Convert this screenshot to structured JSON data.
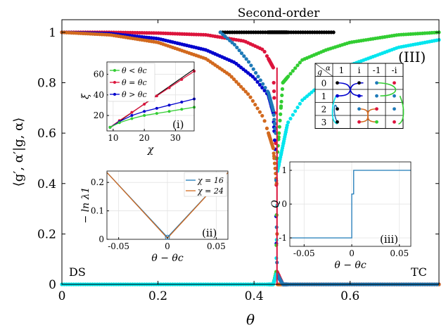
{
  "chart_data": [
    {
      "id": "main",
      "type": "scatter",
      "title": "Second-order",
      "xlabel": "θ",
      "ylabel": "⟨g′, α′|g, α⟩",
      "xlim": [
        0,
        0.785
      ],
      "ylim": [
        0,
        1.05
      ],
      "xticks": [
        0,
        0.2,
        0.4,
        0.6
      ],
      "xtick_labels": [
        "0",
        "0.2",
        "0.4",
        "0.6"
      ],
      "yticks": [
        0,
        0.2,
        0.4,
        0.6,
        0.8,
        1
      ],
      "ytick_labels": [
        "0",
        "0.2",
        "0.4",
        "0.6",
        "0.8",
        "1"
      ],
      "critical_theta": 0.4478,
      "annotations": {
        "left": "DS",
        "right": "TC",
        "panel": "(III)"
      },
      "series": [
        {
          "color": "#000000",
          "points": [
            [
              0.33,
              1.0
            ],
            [
              0.4,
              1.0
            ],
            [
              0.45,
              1.0
            ],
            [
              0.5,
              1.0
            ],
            [
              0.57,
              1.0
            ]
          ]
        },
        {
          "color": "#dc143c",
          "points": [
            [
              0.0,
              1.0
            ],
            [
              0.1,
              1.0
            ],
            [
              0.2,
              0.997
            ],
            [
              0.3,
              0.99
            ],
            [
              0.38,
              0.965
            ],
            [
              0.42,
              0.93
            ],
            [
              0.44,
              0.86
            ],
            [
              0.446,
              0.5
            ],
            [
              0.448,
              0.05
            ],
            [
              0.46,
              0.0
            ],
            [
              0.6,
              0.0
            ],
            [
              0.785,
              0.0
            ]
          ]
        },
        {
          "color": "#0000cd",
          "points": [
            [
              0.0,
              1.0
            ],
            [
              0.1,
              0.995
            ],
            [
              0.2,
              0.975
            ],
            [
              0.3,
              0.93
            ],
            [
              0.36,
              0.88
            ],
            [
              0.4,
              0.82
            ],
            [
              0.43,
              0.75
            ],
            [
              0.44,
              0.68
            ],
            [
              0.445,
              0.5
            ],
            [
              0.447,
              0.04
            ],
            [
              0.46,
              0.0
            ],
            [
              0.785,
              0.0
            ]
          ]
        },
        {
          "color": "#d2691e",
          "points": [
            [
              0.0,
              1.0
            ],
            [
              0.1,
              0.99
            ],
            [
              0.2,
              0.96
            ],
            [
              0.3,
              0.895
            ],
            [
              0.35,
              0.83
            ],
            [
              0.39,
              0.75
            ],
            [
              0.42,
              0.66
            ],
            [
              0.44,
              0.54
            ],
            [
              0.447,
              0.4
            ],
            [
              0.449,
              0.0
            ],
            [
              0.785,
              0.0
            ]
          ]
        },
        {
          "color": "#1e7ab8",
          "points": [
            [
              0.33,
              1.0
            ],
            [
              0.36,
              0.95
            ],
            [
              0.39,
              0.88
            ],
            [
              0.41,
              0.82
            ],
            [
              0.43,
              0.76
            ],
            [
              0.44,
              0.69
            ],
            [
              0.445,
              0.6
            ],
            [
              0.448,
              0.04
            ],
            [
              0.46,
              0.0
            ],
            [
              0.785,
              0.0
            ]
          ]
        },
        {
          "color": "#32cd32",
          "points": [
            [
              0.0,
              0.0
            ],
            [
              0.44,
              0.0
            ],
            [
              0.446,
              0.05
            ],
            [
              0.448,
              0.5
            ],
            [
              0.46,
              0.8
            ],
            [
              0.5,
              0.89
            ],
            [
              0.55,
              0.93
            ],
            [
              0.6,
              0.96
            ],
            [
              0.7,
              0.99
            ],
            [
              0.785,
              1.0
            ]
          ]
        },
        {
          "color": "#00e5ee",
          "points": [
            [
              0.0,
              0.0
            ],
            [
              0.44,
              0.0
            ],
            [
              0.446,
              0.04
            ],
            [
              0.449,
              0.45
            ],
            [
              0.47,
              0.64
            ],
            [
              0.5,
              0.73
            ],
            [
              0.55,
              0.81
            ],
            [
              0.6,
              0.87
            ],
            [
              0.7,
              0.94
            ],
            [
              0.785,
              0.97
            ]
          ]
        }
      ]
    },
    {
      "id": "inset_i",
      "type": "line",
      "xlabel": "χ",
      "ylabel": "ξ",
      "label": "(i)",
      "xlim": [
        8,
        36
      ],
      "ylim": [
        5,
        72
      ],
      "xticks": [
        10,
        20,
        30
      ],
      "xtick_labels": [
        "10",
        "20",
        "30"
      ],
      "yticks": [
        20,
        40,
        60
      ],
      "ytick_labels": [
        "20",
        "40",
        "60"
      ],
      "legend": [
        "θ < θc",
        "θ = θc",
        "θ > θc"
      ],
      "series": [
        {
          "name": "θ = θc",
          "color": "#dc143c",
          "x": [
            9,
            12,
            16,
            20,
            24,
            28,
            32,
            36
          ],
          "y": [
            8.5,
            15,
            23,
            31,
            39,
            47,
            55,
            63
          ]
        },
        {
          "name": "θ > θc",
          "color": "#0000cd",
          "x": [
            9,
            12,
            16,
            20,
            24,
            28,
            32,
            36
          ],
          "y": [
            8.5,
            14,
            20,
            24,
            27,
            30,
            33,
            36
          ]
        },
        {
          "name": "θ < θc",
          "color": "#32cd32",
          "x": [
            9,
            12,
            16,
            20,
            24,
            28,
            32,
            36
          ],
          "y": [
            8.5,
            13,
            17,
            20,
            22,
            24,
            26,
            28
          ]
        }
      ],
      "reference_line": {
        "color": "#000000",
        "x": [
          9,
          36
        ],
        "y": [
          8,
          65
        ]
      }
    },
    {
      "id": "inset_ii",
      "type": "line",
      "xlabel": "θ − θc",
      "ylabel": "− ln λ1",
      "label": "(ii)",
      "xlim": [
        -0.062,
        0.062
      ],
      "ylim": [
        0,
        0.24
      ],
      "xticks": [
        -0.05,
        0,
        0.05
      ],
      "xtick_labels": [
        "-0.05",
        "0",
        "0.05"
      ],
      "yticks": [
        0,
        0.1,
        0.2
      ],
      "ytick_labels": [
        "0",
        "0.1",
        "0.2"
      ],
      "series": [
        {
          "name": "χ = 16",
          "color": "#1e7ab8",
          "x": [
            -0.062,
            0,
            0.062
          ],
          "y": [
            0.235,
            0.007,
            0.235
          ]
        },
        {
          "name": "χ = 24",
          "color": "#d2691e",
          "x": [
            -0.062,
            0,
            0.062
          ],
          "y": [
            0.235,
            0.004,
            0.235
          ]
        }
      ]
    },
    {
      "id": "inset_iii",
      "type": "line",
      "xlabel": "θ − θc",
      "ylabel": "Q",
      "label": "(iii)",
      "xlim": [
        -0.065,
        0.062
      ],
      "ylim": [
        -1.25,
        1.25
      ],
      "xticks": [
        -0.05,
        0,
        0.05
      ],
      "xtick_labels": [
        "-0.05",
        "0",
        "0.05"
      ],
      "yticks": [
        -1,
        0,
        1
      ],
      "ytick_labels": [
        "-1",
        "0",
        "1"
      ],
      "series": [
        {
          "color": "#1e7ab8",
          "x": [
            -0.065,
            0,
            0,
            0.002,
            0.002,
            0.062
          ],
          "y": [
            -1,
            -1,
            0.3,
            0.3,
            1,
            1
          ]
        }
      ]
    },
    {
      "id": "inset_III",
      "type": "table",
      "corner_top": "α",
      "corner_bottom": "g",
      "columns": [
        "1",
        "i",
        "-1",
        "-i"
      ],
      "rows": [
        "0",
        "1",
        "2",
        "3"
      ]
    }
  ]
}
